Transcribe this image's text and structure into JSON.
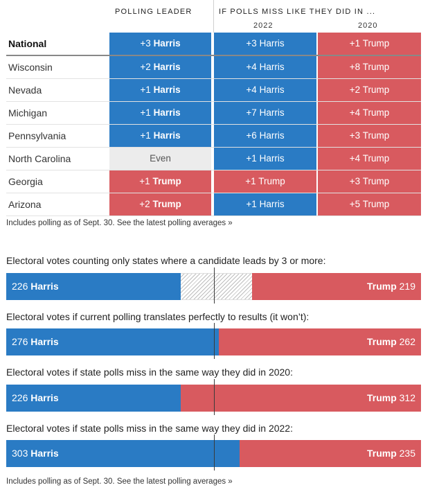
{
  "headers": {
    "polling_leader": "POLLING LEADER",
    "if_polls_miss": "IF POLLS MISS LIKE THEY DID IN ...",
    "year_a": "2022",
    "year_b": "2020"
  },
  "rows": [
    {
      "state": "National",
      "lead": {
        "n": "+3",
        "c": "Harris"
      },
      "y2022": {
        "n": "+3",
        "c": "Harris"
      },
      "y2020": {
        "n": "+1",
        "c": "Trump"
      }
    },
    {
      "state": "Wisconsin",
      "lead": {
        "n": "+2",
        "c": "Harris"
      },
      "y2022": {
        "n": "+4",
        "c": "Harris"
      },
      "y2020": {
        "n": "+8",
        "c": "Trump"
      }
    },
    {
      "state": "Nevada",
      "lead": {
        "n": "+1",
        "c": "Harris"
      },
      "y2022": {
        "n": "+4",
        "c": "Harris"
      },
      "y2020": {
        "n": "+2",
        "c": "Trump"
      }
    },
    {
      "state": "Michigan",
      "lead": {
        "n": "+1",
        "c": "Harris"
      },
      "y2022": {
        "n": "+7",
        "c": "Harris"
      },
      "y2020": {
        "n": "+4",
        "c": "Trump"
      }
    },
    {
      "state": "Pennsylvania",
      "lead": {
        "n": "+1",
        "c": "Harris"
      },
      "y2022": {
        "n": "+6",
        "c": "Harris"
      },
      "y2020": {
        "n": "+3",
        "c": "Trump"
      }
    },
    {
      "state": "North Carolina",
      "lead": {
        "n": "Even",
        "c": ""
      },
      "y2022": {
        "n": "+1",
        "c": "Harris"
      },
      "y2020": {
        "n": "+4",
        "c": "Trump"
      }
    },
    {
      "state": "Georgia",
      "lead": {
        "n": "+1",
        "c": "Trump"
      },
      "y2022": {
        "n": "+1",
        "c": "Trump"
      },
      "y2020": {
        "n": "+3",
        "c": "Trump"
      }
    },
    {
      "state": "Arizona",
      "lead": {
        "n": "+2",
        "c": "Trump"
      },
      "y2022": {
        "n": "+1",
        "c": "Harris"
      },
      "y2020": {
        "n": "+5",
        "c": "Trump"
      }
    }
  ],
  "note1": {
    "text": "Includes polling as of Sept. 30. See the ",
    "link": "latest polling averages »"
  },
  "note2": {
    "text": "Includes polling as of Sept. 30. See the ",
    "link": "latest polling averages »"
  },
  "colors": {
    "harris": "#2a7bc4",
    "trump": "#d85a5f",
    "even": "#ececec"
  },
  "chart_data": {
    "type": "bar",
    "total": 538,
    "bars": [
      {
        "title": "Electoral votes counting only states where a candidate leads by 3 or more:",
        "harris": 226,
        "trump": 219,
        "harris_label": "Harris",
        "trump_label": "Trump"
      },
      {
        "title": "Electoral votes if current polling translates perfectly to results (it won’t):",
        "harris": 276,
        "trump": 262,
        "harris_label": "Harris",
        "trump_label": "Trump"
      },
      {
        "title": "Electoral votes if state polls miss in the same way they did in 2020:",
        "harris": 226,
        "trump": 312,
        "harris_label": "Harris",
        "trump_label": "Trump"
      },
      {
        "title": "Electoral votes if state polls miss in the same way they did in 2022:",
        "harris": 303,
        "trump": 235,
        "harris_label": "Harris",
        "trump_label": "Trump"
      }
    ]
  }
}
